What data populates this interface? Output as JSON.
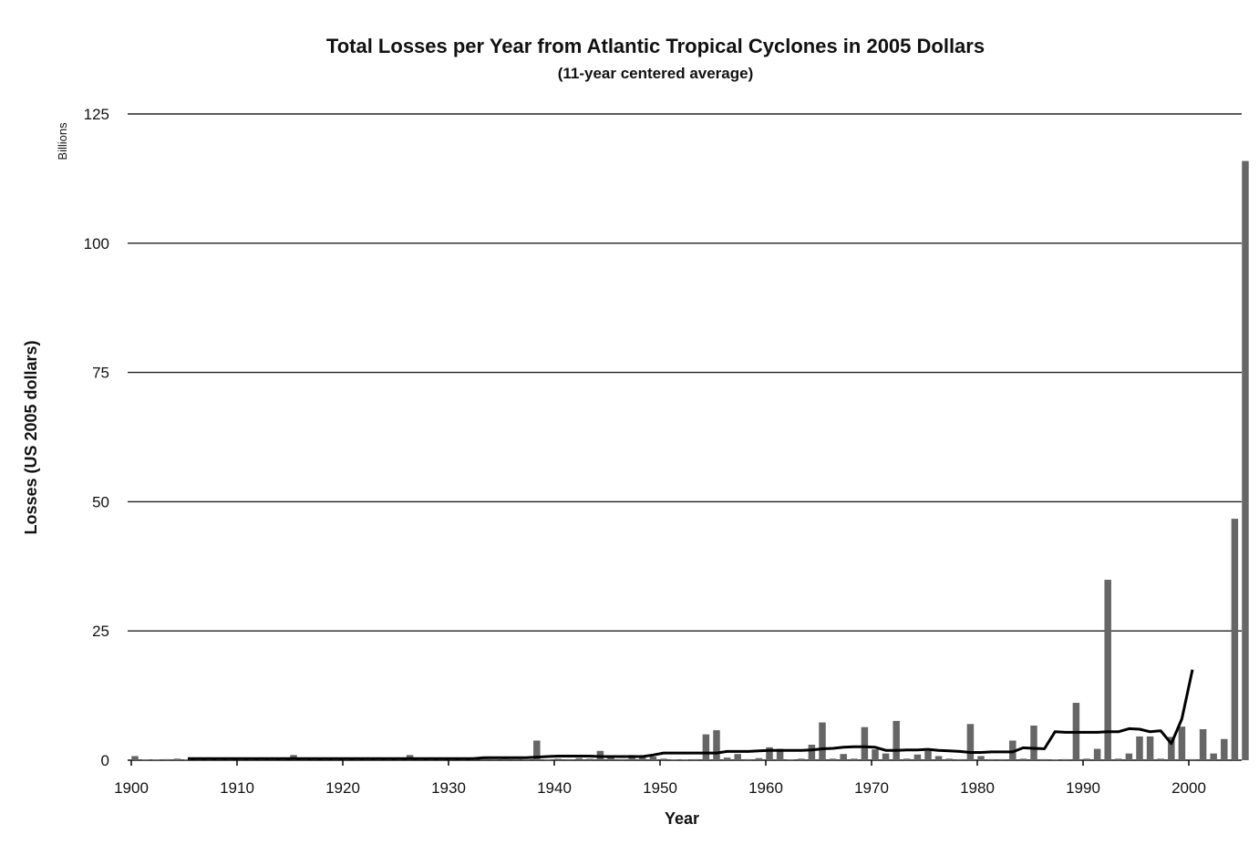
{
  "chart_data": {
    "type": "bar",
    "title": "Total Losses per Year from Atlantic Tropical Cyclones in 2005 Dollars",
    "subtitle": "(11-year centered average)",
    "xlabel": "Year",
    "ylabel": "Losses (US 2005 dollars)",
    "yunit": "Billions",
    "ylim": [
      0,
      125
    ],
    "yticks": [
      0,
      25,
      50,
      75,
      100,
      125
    ],
    "xlim": [
      1900,
      2005
    ],
    "xticks": [
      1900,
      1910,
      1920,
      1930,
      1940,
      1950,
      1960,
      1970,
      1980,
      1990,
      2000
    ],
    "grid": true,
    "colors": {
      "bars": "#666666",
      "average_line": "#000000",
      "gridlines": "#222222"
    },
    "series": [
      {
        "type": "bar",
        "x": [
          1900,
          1901,
          1902,
          1903,
          1904,
          1905,
          1906,
          1907,
          1908,
          1909,
          1910,
          1911,
          1912,
          1913,
          1914,
          1915,
          1916,
          1917,
          1918,
          1919,
          1920,
          1921,
          1922,
          1923,
          1924,
          1925,
          1926,
          1927,
          1928,
          1929,
          1930,
          1931,
          1932,
          1933,
          1934,
          1935,
          1936,
          1937,
          1938,
          1939,
          1940,
          1941,
          1942,
          1943,
          1944,
          1945,
          1946,
          1947,
          1948,
          1949,
          1950,
          1951,
          1952,
          1953,
          1954,
          1955,
          1956,
          1957,
          1958,
          1959,
          1960,
          1961,
          1962,
          1963,
          1964,
          1965,
          1966,
          1967,
          1968,
          1969,
          1970,
          1971,
          1972,
          1973,
          1974,
          1975,
          1976,
          1977,
          1978,
          1979,
          1980,
          1981,
          1982,
          1983,
          1984,
          1985,
          1986,
          1987,
          1988,
          1989,
          1990,
          1991,
          1992,
          1993,
          1994,
          1995,
          1996,
          1997,
          1998,
          1999,
          2000,
          2001,
          2002,
          2003,
          2004,
          2005
        ],
        "values": [
          0.8,
          0.1,
          0.1,
          0.2,
          0.3,
          0.1,
          0.3,
          0.1,
          0.1,
          0.3,
          0.2,
          0.1,
          0.1,
          0.1,
          0.1,
          1.0,
          0.3,
          0.2,
          0.2,
          0.5,
          0.2,
          0.3,
          0.1,
          0.1,
          0.1,
          0.1,
          1.0,
          0.1,
          0.5,
          0.3,
          0.1,
          0.1,
          0.3,
          0.4,
          0.2,
          0.5,
          0.2,
          0.1,
          3.8,
          0.1,
          0.3,
          0.2,
          0.4,
          0.3,
          1.8,
          0.8,
          0.2,
          1.0,
          0.6,
          0.7,
          0.3,
          0.1,
          0.1,
          0.2,
          5.0,
          5.8,
          0.5,
          1.2,
          0.2,
          0.4,
          2.5,
          2.2,
          0.1,
          0.3,
          3.0,
          7.3,
          0.3,
          1.2,
          0.3,
          6.4,
          2.1,
          1.3,
          7.6,
          0.3,
          1.1,
          1.8,
          0.8,
          0.3,
          0.2,
          7.0,
          0.8,
          0.2,
          0.2,
          3.8,
          0.3,
          6.7,
          0.2,
          0.1,
          0.2,
          11.1,
          0.3,
          2.2,
          34.9,
          0.3,
          1.3,
          4.6,
          4.6,
          0.3,
          4.5,
          6.5,
          0.2,
          6.0,
          1.3,
          4.1,
          46.7,
          115.9
        ]
      },
      {
        "type": "line",
        "name": "",
        "x": [
          1905,
          1906,
          1907,
          1908,
          1909,
          1910,
          1911,
          1912,
          1913,
          1914,
          1915,
          1916,
          1917,
          1918,
          1919,
          1920,
          1921,
          1922,
          1923,
          1924,
          1925,
          1926,
          1927,
          1928,
          1929,
          1930,
          1931,
          1932,
          1933,
          1934,
          1935,
          1936,
          1937,
          1938,
          1939,
          1940,
          1941,
          1942,
          1943,
          1944,
          1945,
          1946,
          1947,
          1948,
          1949,
          1950,
          1951,
          1952,
          1953,
          1954,
          1955,
          1956,
          1957,
          1958,
          1959,
          1960,
          1961,
          1962,
          1963,
          1964,
          1965,
          1966,
          1967,
          1968,
          1969,
          1970,
          1971,
          1972,
          1973,
          1974,
          1975,
          1976,
          1977,
          1978,
          1979,
          1980,
          1981,
          1982,
          1983,
          1984,
          1985,
          1986,
          1987,
          1988,
          1989,
          1990,
          1991,
          1992,
          1993,
          1994,
          1995,
          1996,
          1997,
          1998,
          1999,
          2000
        ],
        "values": [
          0.3,
          0.3,
          0.3,
          0.3,
          0.3,
          0.3,
          0.3,
          0.3,
          0.3,
          0.3,
          0.3,
          0.3,
          0.3,
          0.3,
          0.3,
          0.3,
          0.3,
          0.3,
          0.3,
          0.3,
          0.3,
          0.3,
          0.3,
          0.3,
          0.3,
          0.3,
          0.3,
          0.3,
          0.5,
          0.5,
          0.5,
          0.5,
          0.5,
          0.6,
          0.7,
          0.8,
          0.8,
          0.8,
          0.8,
          0.7,
          0.7,
          0.7,
          0.7,
          0.7,
          1.0,
          1.4,
          1.4,
          1.4,
          1.4,
          1.4,
          1.4,
          1.7,
          1.7,
          1.7,
          1.8,
          1.9,
          1.9,
          1.9,
          1.9,
          2.0,
          2.2,
          2.3,
          2.5,
          2.6,
          2.6,
          2.5,
          1.9,
          1.9,
          2.0,
          2.0,
          2.1,
          1.9,
          1.8,
          1.7,
          1.5,
          1.5,
          1.6,
          1.6,
          1.6,
          2.4,
          2.3,
          2.2,
          5.5,
          5.4,
          5.4,
          5.4,
          5.4,
          5.5,
          5.5,
          6.1,
          6.0,
          5.5,
          5.7,
          3.2,
          8.0,
          17.5
        ]
      }
    ]
  }
}
